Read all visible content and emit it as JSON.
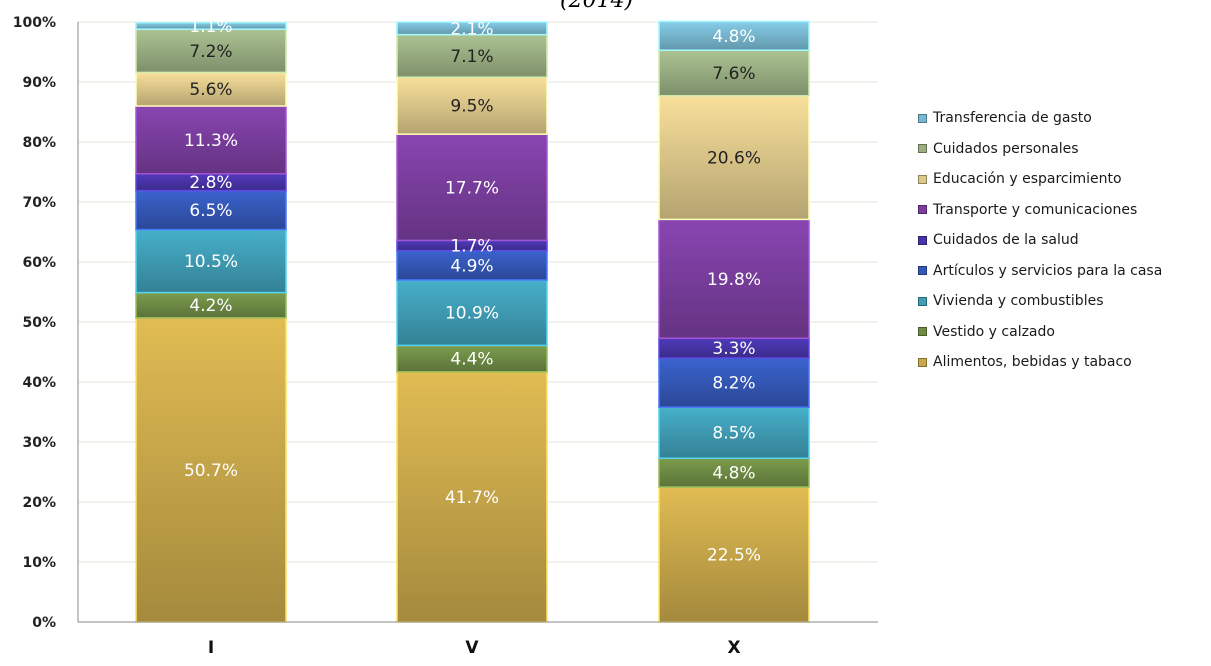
{
  "title_fragment": "(2014)",
  "chart_data": {
    "type": "bar",
    "stacked": true,
    "percent_stacked": true,
    "categories": [
      "I",
      "V",
      "X"
    ],
    "y_ticks": [
      "0%",
      "10%",
      "20%",
      "30%",
      "40%",
      "50%",
      "60%",
      "70%",
      "80%",
      "90%",
      "100%"
    ],
    "ylim": [
      0,
      100
    ],
    "grid": true,
    "legend_position": "right",
    "series": [
      {
        "name": "Alimentos, bebidas y tabaco",
        "color": "#c9a84a",
        "values": [
          50.7,
          41.7,
          22.5
        ],
        "labels": [
          "50.7%",
          "41.7%",
          "22.5%"
        ]
      },
      {
        "name": "Vestido y calzado",
        "color": "#6f8c45",
        "values": [
          4.2,
          4.4,
          4.8
        ],
        "labels": [
          "4.2%",
          "4.4%",
          "4.8%"
        ]
      },
      {
        "name": "Vivienda y combustibles",
        "color": "#3f9db5",
        "values": [
          10.5,
          10.9,
          8.5
        ],
        "labels": [
          "10.5%",
          "10.9%",
          "8.5%"
        ]
      },
      {
        "name": "Artículos y servicios para la casa",
        "color": "#3558b8",
        "values": [
          6.5,
          4.9,
          8.2
        ],
        "labels": [
          "6.5%",
          "4.9%",
          "8.2%"
        ]
      },
      {
        "name": "Cuidados de la salud",
        "color": "#4834a8",
        "values": [
          2.8,
          1.7,
          3.3
        ],
        "labels": [
          "2.8%",
          "1.7%",
          "3.3%"
        ]
      },
      {
        "name": "Transporte y comunicaciones",
        "color": "#7a3e9e",
        "values": [
          11.3,
          17.7,
          19.8
        ],
        "labels": [
          "11.3%",
          "17.7%",
          "19.8%"
        ]
      },
      {
        "name": "Educación y esparcimiento",
        "color": "#ddc88a",
        "values": [
          5.6,
          9.5,
          20.6
        ],
        "labels": [
          "5.6%",
          "9.5%",
          "20.6%"
        ]
      },
      {
        "name": "Cuidados personales",
        "color": "#9aae82",
        "values": [
          7.2,
          7.1,
          7.6
        ],
        "labels": [
          "7.2%",
          "7.1%",
          "7.6%"
        ]
      },
      {
        "name": "Transferencia de gasto",
        "color": "#78b8d0",
        "values": [
          1.1,
          2.1,
          4.8
        ],
        "labels": [
          "1.1%",
          "2.1%",
          "4.8%"
        ]
      }
    ],
    "label_colors": {
      "light": "#ffffff",
      "dark": "#222222"
    }
  }
}
